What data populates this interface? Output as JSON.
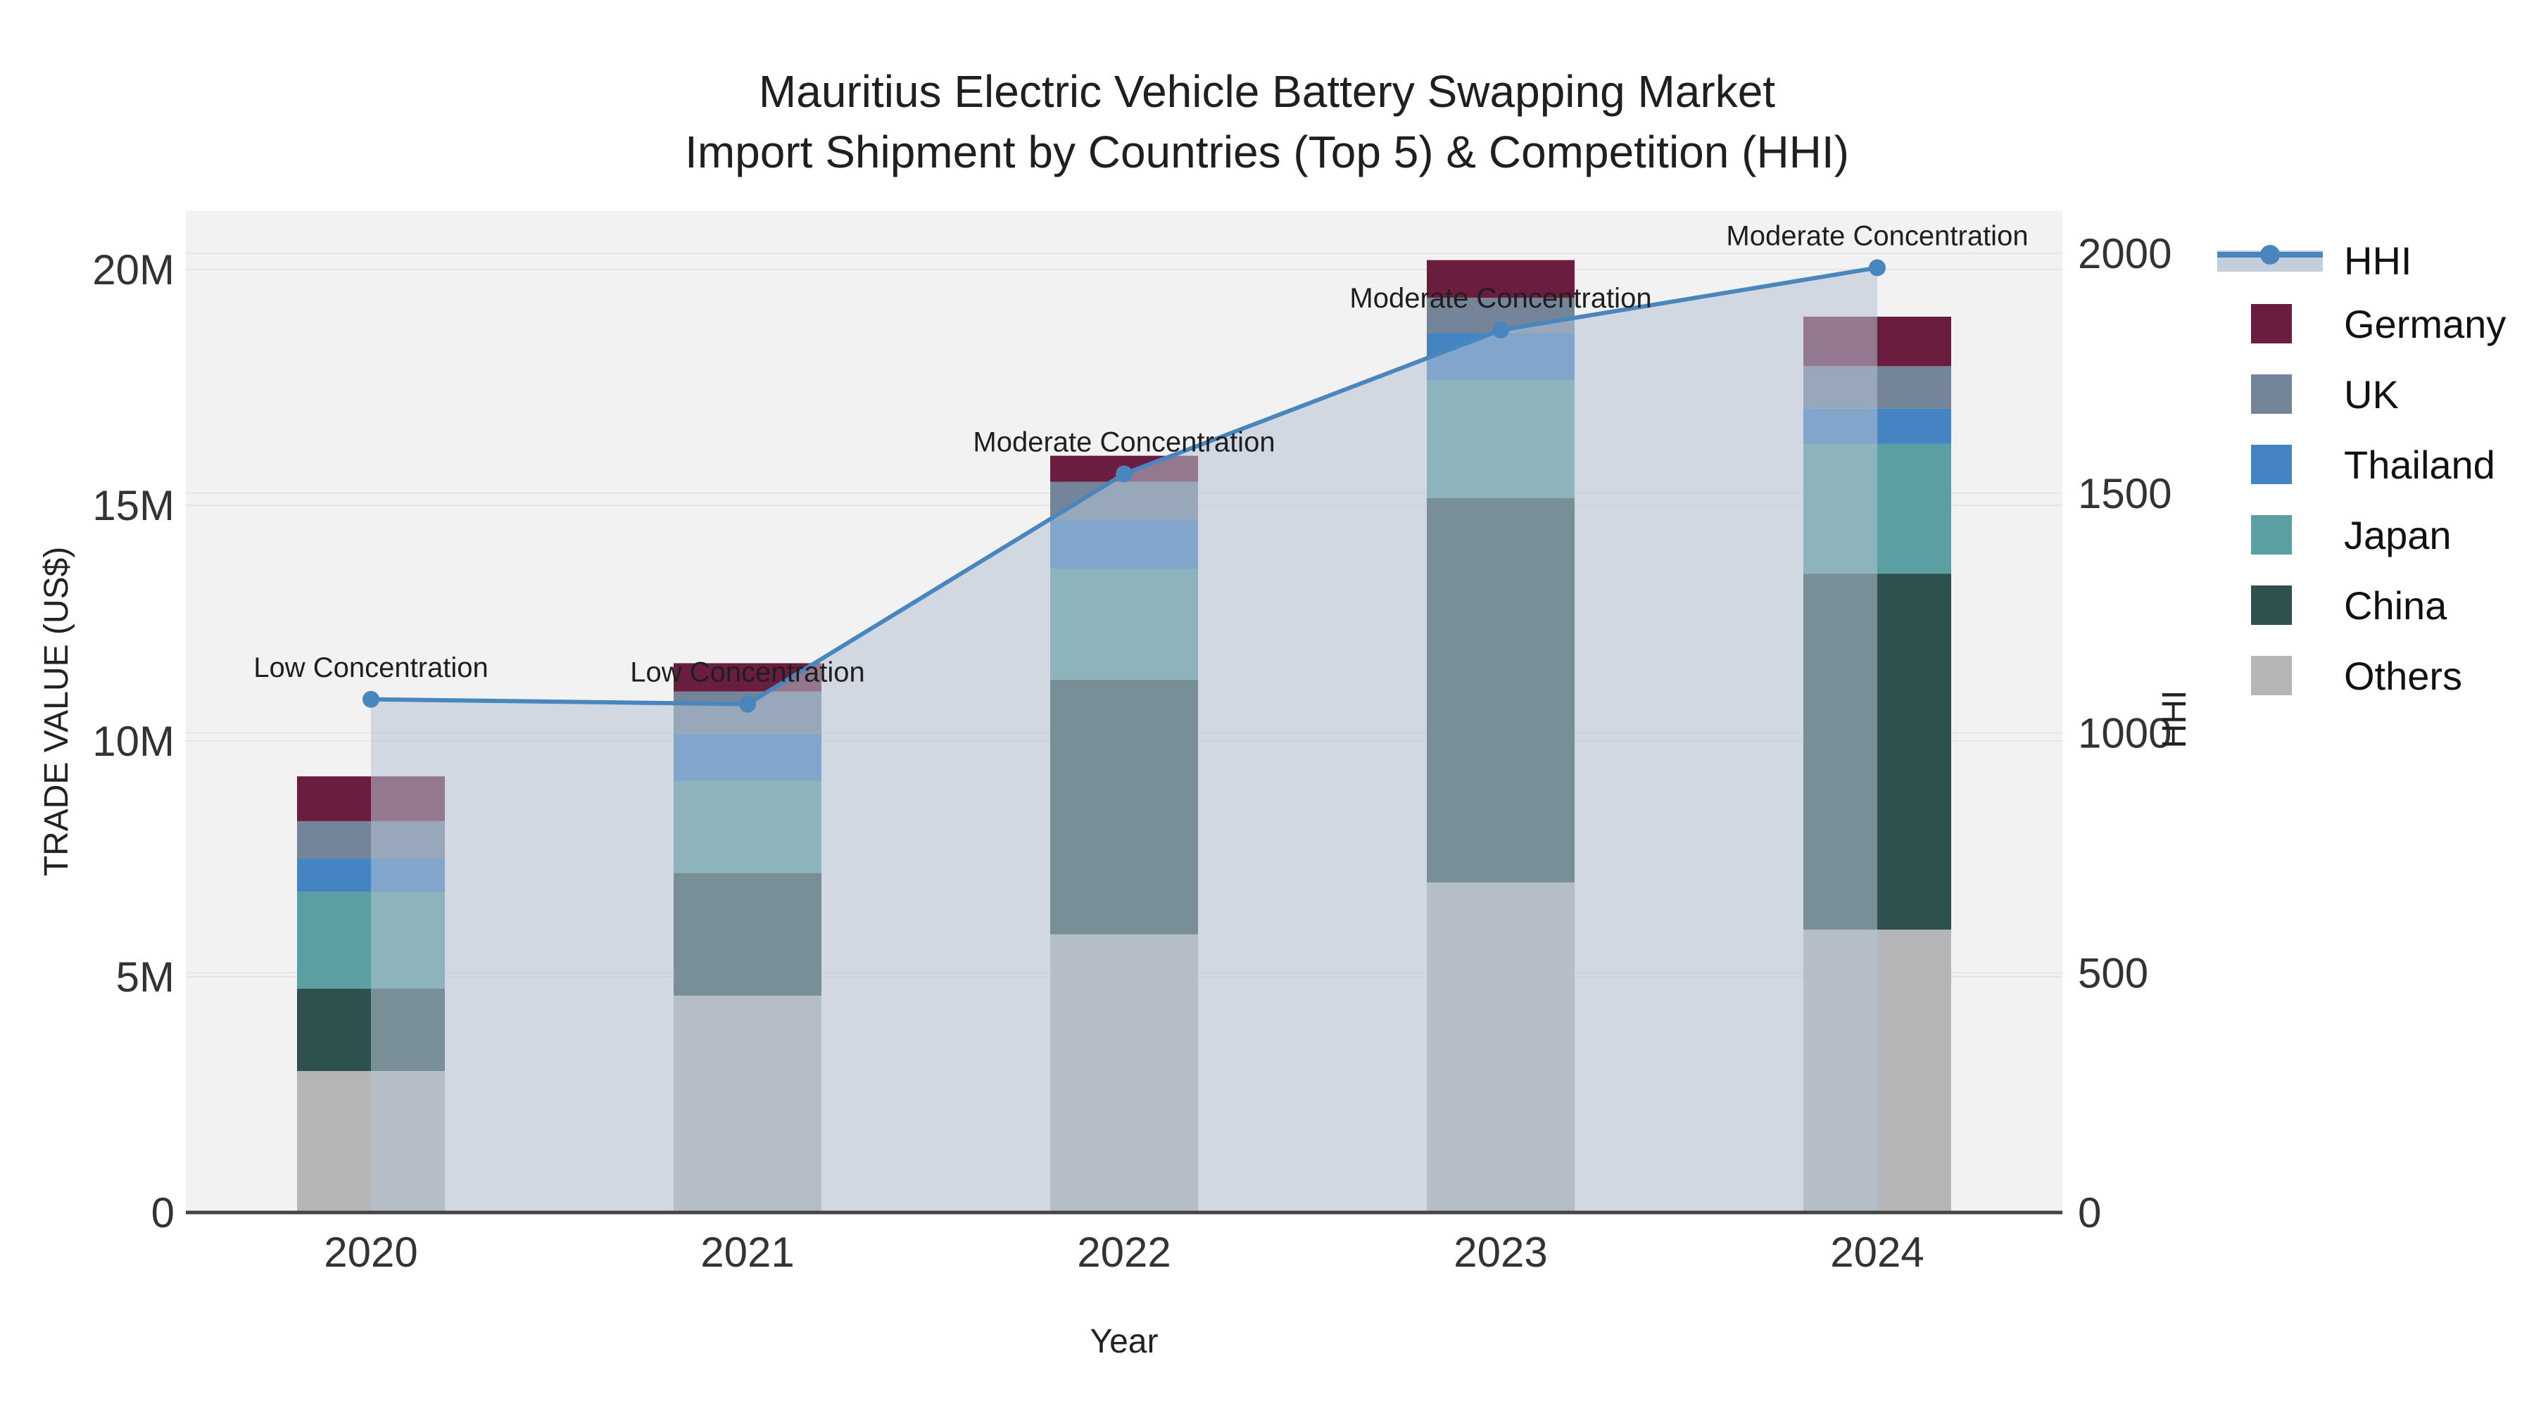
{
  "title": {
    "line1": "Mauritius Electric Vehicle Battery Swapping Market",
    "line2": "Import Shipment by Countries (Top 5) & Competition (HHI)"
  },
  "axes": {
    "x": {
      "title": "Year",
      "categories": [
        "2020",
        "2021",
        "2022",
        "2023",
        "2024"
      ]
    },
    "y_left": {
      "title": "TRADE VALUE (US$)",
      "tick_labels": [
        "0",
        "5M",
        "10M",
        "15M",
        "20M"
      ],
      "tick_values_millions": [
        0,
        5,
        10,
        15,
        20
      ],
      "max_millions": 20
    },
    "y_right": {
      "title": "HHI",
      "tick_labels": [
        "0",
        "500",
        "1000",
        "1500",
        "2000"
      ],
      "tick_values": [
        0,
        500,
        1000,
        1500,
        2000
      ],
      "max": 2000
    }
  },
  "legend": {
    "items": [
      {
        "label": "HHI",
        "type": "line",
        "color": "#4986bd"
      },
      {
        "label": "Germany",
        "type": "swatch",
        "color": "#6b1d3f"
      },
      {
        "label": "UK",
        "type": "swatch",
        "color": "#74859a"
      },
      {
        "label": "Thailand",
        "type": "swatch",
        "color": "#4484c2"
      },
      {
        "label": "Japan",
        "type": "swatch",
        "color": "#5b9fa2"
      },
      {
        "label": "China",
        "type": "swatch",
        "color": "#2e504e"
      },
      {
        "label": "Others",
        "type": "swatch",
        "color": "#b3b5b6"
      }
    ]
  },
  "chart_data": {
    "type": "bar+line",
    "title": "Mauritius Electric Vehicle Battery Swapping Market — Import Shipment by Countries (Top 5) & Competition (HHI)",
    "categories": [
      "2020",
      "2021",
      "2022",
      "2023",
      "2024"
    ],
    "bar_value_unit": "millions USD",
    "stack_order_bottom_to_top": [
      "Others",
      "China",
      "Japan",
      "Thailand",
      "UK",
      "Germany"
    ],
    "series": [
      {
        "name": "Germany",
        "color": "#6b1d3f",
        "values": [
          0.95,
          0.6,
          0.55,
          0.8,
          1.05
        ]
      },
      {
        "name": "UK",
        "color": "#74859a",
        "values": [
          0.8,
          0.9,
          0.8,
          0.75,
          0.9
        ]
      },
      {
        "name": "Thailand",
        "color": "#4484c2",
        "values": [
          0.7,
          1.0,
          1.05,
          1.0,
          0.75
        ]
      },
      {
        "name": "Japan",
        "color": "#5b9fa2",
        "values": [
          2.05,
          1.95,
          2.35,
          2.5,
          2.75
        ]
      },
      {
        "name": "China",
        "color": "#2e504e",
        "values": [
          1.75,
          2.6,
          5.4,
          8.15,
          7.55
        ]
      },
      {
        "name": "Others",
        "color": "#b3b5b6",
        "values": [
          3.0,
          4.6,
          5.9,
          7.0,
          6.0
        ]
      }
    ],
    "bar_totals_millions": [
      9.25,
      11.65,
      16.05,
      20.2,
      19.0
    ],
    "line": {
      "name": "HHI",
      "axis": "right",
      "color": "#4986bd",
      "area_fill": true,
      "area_fill_color": "rgba(183,194,211,0.55)",
      "values": [
        1070,
        1060,
        1540,
        1840,
        1970
      ]
    },
    "annotations": [
      {
        "year": "2020",
        "text": "Low Concentration"
      },
      {
        "year": "2021",
        "text": "Low Concentration"
      },
      {
        "year": "2022",
        "text": "Moderate Concentration"
      },
      {
        "year": "2023",
        "text": "Moderate Concentration"
      },
      {
        "year": "2024",
        "text": "Moderate Concentration"
      }
    ],
    "ylim_left_millions": [
      0,
      20
    ],
    "ylim_right": [
      0,
      2000
    ],
    "grid": true,
    "legend_position": "right",
    "plot_background": "#f2f2f2",
    "gridline_color": "#e4e4e4",
    "axis_line_color": "#444444"
  }
}
